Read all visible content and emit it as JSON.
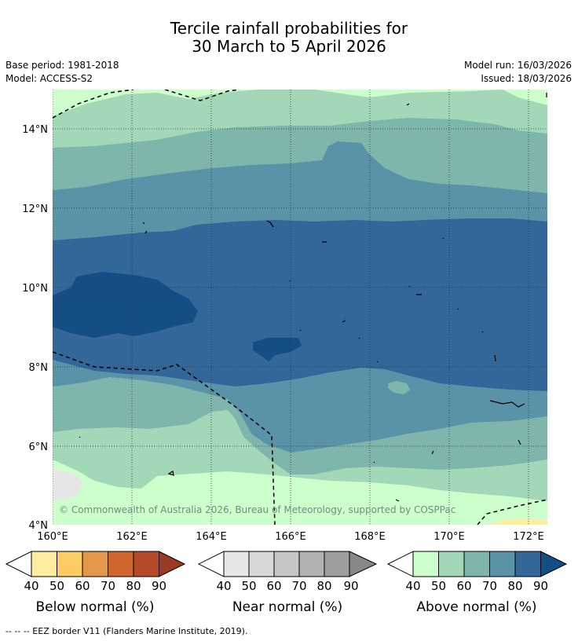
{
  "title": {
    "line1": "Tercile rainfall probabilities for",
    "line2": "30 March to 5 April 2026"
  },
  "meta": {
    "base_period": "Base period: 1981-2018",
    "model": "Model: ACCESS-S2",
    "model_run": "Model run: 16/03/2026",
    "issued": "Issued: 18/03/2026"
  },
  "axes": {
    "lat_ticks": [
      "14°N",
      "12°N",
      "10°N",
      "8°N",
      "6°N",
      "4°N"
    ],
    "lon_ticks": [
      "160°E",
      "162°E",
      "164°E",
      "166°E",
      "168°E",
      "170°E",
      "172°E"
    ]
  },
  "copyright": "© Commonwealth of Australia 2026, Bureau of Meteorology, supported by COSPPac",
  "colorbars": [
    {
      "title": "Below normal (%)",
      "ticks": [
        "40",
        "50",
        "60",
        "70",
        "80",
        "90"
      ],
      "colors": [
        "#feeda0",
        "#fdcc63",
        "#e4974a",
        "#d0652e",
        "#b44b28",
        "#983a24"
      ]
    },
    {
      "title": "Near normal (%)",
      "ticks": [
        "40",
        "50",
        "60",
        "70",
        "80",
        "90"
      ],
      "colors": [
        "#e6e6e6",
        "#d8d8d8",
        "#c6c6c6",
        "#b2b2b2",
        "#9e9e9e",
        "#888888"
      ]
    },
    {
      "title": "Above normal (%)",
      "ticks": [
        "40",
        "50",
        "60",
        "70",
        "80",
        "90"
      ],
      "colors": [
        "#ccffcc",
        "#a2d8b8",
        "#7fb6ac",
        "#5a93a8",
        "#336699",
        "#154d85"
      ]
    }
  ],
  "footnote": "--  --  -- EEZ border V11 (Flanders Marine Institute, 2019)."
}
